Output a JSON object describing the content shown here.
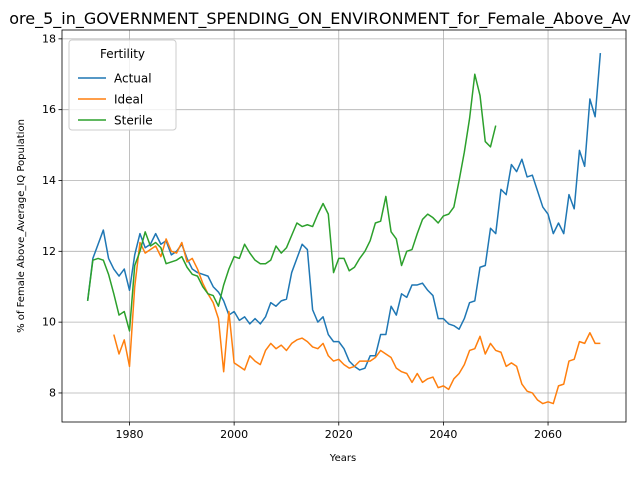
{
  "chart_data": {
    "type": "line",
    "title": "ore_5_in_GOVERNMENT_SPENDING_ON_ENVIRONMENT_for_Female_Above_Av",
    "x_label": "Years",
    "y_label": "% of Female Above_Average_IQ Population",
    "legend_title": "Fertility",
    "legend_position": "upper left",
    "grid": true,
    "xlim": [
      1967.1,
      2074.9
    ],
    "ylim": [
      7.18,
      18.25
    ],
    "xticks": [
      1980,
      2000,
      2020,
      2040,
      2060
    ],
    "yticks": [
      8,
      10,
      12,
      14,
      16,
      18
    ],
    "x": [
      1972,
      1973,
      1974,
      1975,
      1976,
      1977,
      1978,
      1979,
      1980,
      1981,
      1982,
      1983,
      1984,
      1985,
      1986,
      1987,
      1988,
      1989,
      1990,
      1991,
      1992,
      1993,
      1994,
      1995,
      1996,
      1997,
      1998,
      1999,
      2000,
      2001,
      2002,
      2003,
      2004,
      2005,
      2006,
      2007,
      2008,
      2009,
      2010,
      2011,
      2012,
      2013,
      2014,
      2015,
      2016,
      2017,
      2018,
      2019,
      2020,
      2021,
      2022,
      2023,
      2024,
      2025,
      2026,
      2027,
      2028,
      2029,
      2030,
      2031,
      2032,
      2033,
      2034,
      2035,
      2036,
      2037,
      2038,
      2039,
      2040,
      2041,
      2042,
      2043,
      2044,
      2045,
      2046,
      2047,
      2048,
      2049,
      2050,
      2051,
      2052,
      2053,
      2054,
      2055,
      2056,
      2057,
      2058,
      2059,
      2060,
      2061,
      2062,
      2063,
      2064,
      2065,
      2066,
      2067,
      2068,
      2069,
      2070
    ],
    "series": [
      {
        "name": "Actual",
        "color": "#1f77b4",
        "values": [
          10.6,
          11.8,
          12.2,
          12.6,
          11.8,
          11.5,
          11.3,
          11.5,
          10.9,
          11.9,
          12.5,
          12.1,
          12.2,
          12.5,
          12.2,
          12.3,
          11.9,
          12.0,
          12.2,
          11.8,
          11.5,
          11.4,
          11.35,
          11.3,
          11.0,
          10.85,
          10.6,
          10.2,
          10.3,
          10.05,
          10.15,
          9.95,
          10.1,
          9.95,
          10.15,
          10.55,
          10.45,
          10.6,
          10.65,
          11.4,
          11.8,
          12.2,
          12.05,
          10.35,
          10.0,
          10.15,
          9.65,
          9.45,
          9.45,
          9.25,
          8.9,
          8.75,
          8.65,
          8.7,
          9.05,
          9.05,
          9.65,
          9.65,
          10.45,
          10.2,
          10.8,
          10.7,
          11.05,
          11.05,
          11.1,
          10.9,
          10.75,
          10.1,
          10.1,
          9.95,
          9.9,
          9.8,
          10.1,
          10.55,
          10.6,
          11.55,
          11.6,
          12.65,
          12.5,
          13.75,
          13.6,
          14.45,
          14.25,
          14.6,
          14.1,
          14.15,
          13.7,
          13.25,
          13.05,
          12.5,
          12.8,
          12.5,
          13.6,
          13.2,
          14.85,
          14.4,
          16.3,
          15.8,
          17.6
        ]
      },
      {
        "name": "Ideal",
        "color": "#ff7f0e",
        "values": [
          null,
          null,
          null,
          null,
          null,
          9.65,
          9.1,
          9.5,
          8.75,
          11.0,
          12.25,
          11.95,
          12.05,
          12.15,
          11.85,
          12.35,
          12.0,
          11.95,
          12.25,
          11.7,
          11.8,
          11.5,
          11.1,
          10.8,
          10.55,
          10.1,
          8.6,
          10.3,
          8.85,
          8.75,
          8.65,
          9.05,
          8.9,
          8.8,
          9.2,
          9.4,
          9.25,
          9.35,
          9.2,
          9.4,
          9.5,
          9.55,
          9.45,
          9.3,
          9.25,
          9.4,
          9.05,
          8.9,
          8.95,
          8.8,
          8.7,
          8.75,
          8.9,
          8.9,
          8.9,
          9.0,
          9.2,
          9.1,
          9.0,
          8.7,
          8.6,
          8.55,
          8.3,
          8.55,
          8.3,
          8.4,
          8.45,
          8.15,
          8.2,
          8.1,
          8.4,
          8.55,
          8.8,
          9.2,
          9.25,
          9.6,
          9.1,
          9.4,
          9.2,
          9.15,
          8.75,
          8.85,
          8.75,
          8.25,
          8.05,
          8.0,
          7.8,
          7.7,
          7.75,
          7.7,
          8.2,
          8.25,
          8.9,
          8.95,
          9.45,
          9.4,
          9.7,
          9.4,
          9.4
        ]
      },
      {
        "name": "Sterile",
        "color": "#2ca02c",
        "values": [
          10.6,
          11.75,
          11.8,
          11.75,
          11.35,
          10.8,
          10.2,
          10.3,
          9.75,
          11.6,
          12.0,
          12.55,
          12.15,
          12.25,
          12.1,
          11.65,
          11.7,
          11.75,
          11.85,
          11.55,
          11.35,
          11.3,
          11.0,
          10.8,
          10.75,
          10.45,
          11.05,
          11.5,
          11.85,
          11.8,
          12.2,
          11.95,
          11.75,
          11.65,
          11.65,
          11.75,
          12.15,
          11.95,
          12.1,
          12.45,
          12.8,
          12.7,
          12.75,
          12.7,
          13.05,
          13.35,
          13.05,
          11.4,
          11.8,
          11.8,
          11.45,
          11.55,
          11.8,
          12.0,
          12.3,
          12.8,
          12.85,
          13.55,
          12.55,
          12.35,
          11.6,
          12.0,
          12.05,
          12.5,
          12.9,
          13.05,
          12.95,
          12.8,
          13.0,
          13.05,
          13.25,
          14.0,
          14.8,
          15.75,
          17.0,
          16.4,
          15.1,
          14.95,
          15.55,
          null,
          null,
          null,
          null,
          null,
          null,
          null,
          null,
          null,
          null,
          null,
          null,
          null,
          null,
          null,
          null,
          null,
          null,
          null,
          null
        ]
      }
    ]
  }
}
